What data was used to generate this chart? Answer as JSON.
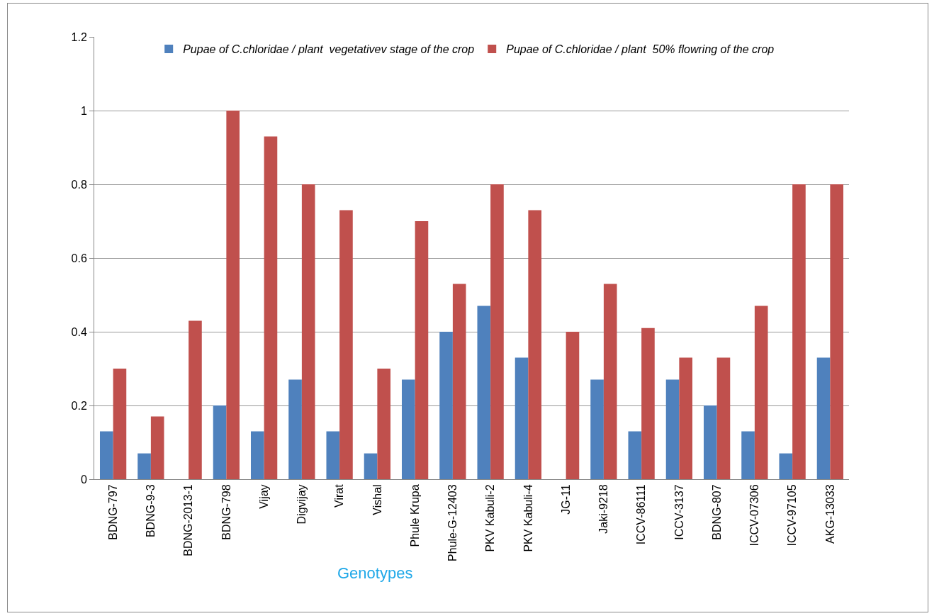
{
  "chart_data": {
    "type": "bar",
    "xlabel": "Genotypes",
    "categories": [
      "BDNG-797",
      "BDNG-9-3",
      "BDNG-2013-1",
      "BDNG-798",
      "Vijay",
      "Digvijay",
      "Virat",
      "Vishal",
      "Phule Krupa",
      "Phule-G-12403",
      "PKV Kabuli-2",
      "PKV Kabuli-4",
      "JG-11",
      "Jaki-9218",
      "ICCV-86111",
      "ICCV-3137",
      "BDNG-807",
      "ICCV-07306",
      "ICCV-97105",
      "AKG-13033"
    ],
    "series": [
      {
        "name": "Pupae of C.chloridae / plant  vegetativev stage of the crop",
        "color": "#4f81bd",
        "values": [
          0.13,
          0.07,
          0,
          0.2,
          0.13,
          0.27,
          0.13,
          0.07,
          0.27,
          0.4,
          0.47,
          0.33,
          0,
          0.27,
          0.13,
          0.27,
          0.2,
          0.13,
          0.07,
          0.33
        ]
      },
      {
        "name": "Pupae of C.chloridae / plant  50% flowring of the crop",
        "color": "#c0504d",
        "values": [
          0.3,
          0.17,
          0.43,
          1,
          0.93,
          0.8,
          0.73,
          0.3,
          0.7,
          0.53,
          0.8,
          0.73,
          0.4,
          0.53,
          0.41,
          0.33,
          0.33,
          0.47,
          0.8,
          0.8
        ]
      }
    ],
    "ylim": [
      0,
      1.2
    ],
    "yticks": [
      0,
      0.2,
      0.4,
      0.6,
      0.8,
      1,
      1.2
    ],
    "grid": "y",
    "legend": "top"
  }
}
